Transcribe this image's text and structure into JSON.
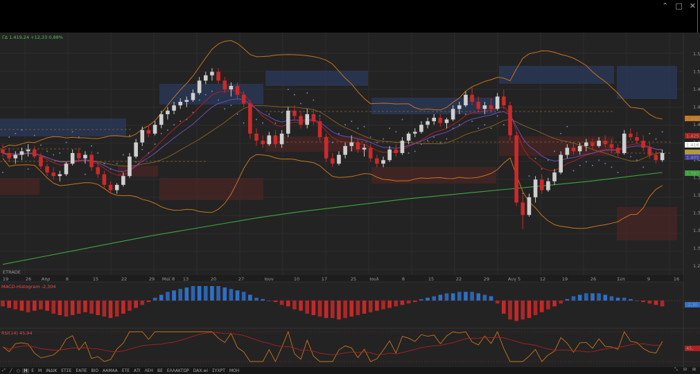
{
  "window": {
    "controls": [
      "⌃",
      "□",
      "✕"
    ]
  },
  "header": {
    "price_label": "ΓΔ 1.419,24 +12,33 0,88%"
  },
  "watermark": "ETRADE",
  "price_axis": {
    "ticks": [
      "1.52",
      "1.50",
      "1.48",
      "1.46",
      "1.44",
      "1.42",
      "1.40",
      "1.38",
      "1.36",
      "1.34",
      "1.32",
      "1.30",
      "1.28"
    ]
  },
  "price_tags": [
    {
      "text": "1.446",
      "color": "#c8751b"
    },
    {
      "text": "1.425",
      "color": "#b02020"
    },
    {
      "text": "1.416",
      "color": "#ffffff"
    },
    {
      "text": "1.410",
      "color": "#b59b2b"
    },
    {
      "text": "1.405",
      "color": "#4040a0"
    },
    {
      "text": "1.387",
      "color": "#3aa03a"
    }
  ],
  "date_axis": {
    "labels": [
      "19",
      "26",
      "Απρ",
      "8",
      "15",
      "22",
      "29",
      "Μαϊ 8",
      "13",
      "20",
      "27",
      "Ιουν",
      "10",
      "17",
      "25",
      "Ιουλ",
      "8",
      "15",
      "22",
      "29",
      "Αυγ 5",
      "12",
      "19",
      "26",
      "Σεπ",
      "9",
      "16"
    ]
  },
  "macd": {
    "title": "MACD-Histogram -2,304",
    "tag": "-2,30"
  },
  "rsi": {
    "title": "RSI(14) 45,94",
    "tags": [
      "45,"
    ]
  },
  "toolbar": {
    "items": [
      "⤢",
      "╱",
      "○",
      "Η",
      "Ε",
      "Μ",
      "ΙΝΔΙΚ",
      "ΕΤΣΕ",
      "ΕΑΠΕ",
      "ΒΙΟ",
      "ΑΑΜΑΑ",
      "ΕΤΕ",
      "ΑΤΙ",
      "ΛΕΗ",
      "ΒΕ",
      "ΕΛΛΑΚΤΩΡ",
      "DAX.wi",
      "ΣΥΧΡΤ",
      "ΜΟΗ"
    ],
    "active_index": 3,
    "right_icons": [
      "⤡",
      "⊟",
      "⊞"
    ]
  },
  "colors": {
    "background": "#232323",
    "bull_candle": "#cfcfcf",
    "bear_candle": "#cc2a2a",
    "ma_long": "#3ea83e",
    "bollinger": "#c8751b",
    "ma_red": "#b02020",
    "ma_purple": "#6a4fb5",
    "macd_pos": "#2f6fc7",
    "macd_neg": "#c62828",
    "sar": "#6f7fb5"
  },
  "chart_data": {
    "type": "candlestick",
    "candles_ohlc": [
      [
        1.412,
        1.418,
        1.404,
        1.408
      ],
      [
        1.408,
        1.414,
        1.398,
        1.402
      ],
      [
        1.402,
        1.41,
        1.396,
        1.406
      ],
      [
        1.406,
        1.414,
        1.4,
        1.41
      ],
      [
        1.41,
        1.418,
        1.404,
        1.412
      ],
      [
        1.412,
        1.416,
        1.402,
        1.404
      ],
      [
        1.404,
        1.408,
        1.39,
        1.393
      ],
      [
        1.393,
        1.396,
        1.382,
        1.386
      ],
      [
        1.386,
        1.392,
        1.378,
        1.382
      ],
      [
        1.382,
        1.388,
        1.376,
        1.384
      ],
      [
        1.384,
        1.398,
        1.382,
        1.396
      ],
      [
        1.396,
        1.412,
        1.394,
        1.408
      ],
      [
        1.408,
        1.414,
        1.398,
        1.402
      ],
      [
        1.402,
        1.41,
        1.396,
        1.406
      ],
      [
        1.406,
        1.41,
        1.388,
        1.392
      ],
      [
        1.392,
        1.398,
        1.38,
        1.384
      ],
      [
        1.384,
        1.388,
        1.368,
        1.372
      ],
      [
        1.372,
        1.376,
        1.362,
        1.366
      ],
      [
        1.366,
        1.374,
        1.362,
        1.372
      ],
      [
        1.372,
        1.386,
        1.37,
        1.382
      ],
      [
        1.382,
        1.408,
        1.38,
        1.404
      ],
      [
        1.404,
        1.424,
        1.402,
        1.42
      ],
      [
        1.42,
        1.438,
        1.416,
        1.434
      ],
      [
        1.434,
        1.44,
        1.426,
        1.43
      ],
      [
        1.43,
        1.444,
        1.428,
        1.44
      ],
      [
        1.44,
        1.456,
        1.436,
        1.452
      ],
      [
        1.452,
        1.46,
        1.446,
        1.456
      ],
      [
        1.456,
        1.466,
        1.452,
        1.462
      ],
      [
        1.462,
        1.47,
        1.458,
        1.466
      ],
      [
        1.466,
        1.472,
        1.46,
        1.468
      ],
      [
        1.468,
        1.48,
        1.466,
        1.476
      ],
      [
        1.476,
        1.494,
        1.474,
        1.49
      ],
      [
        1.49,
        1.5,
        1.486,
        1.496
      ],
      [
        1.496,
        1.504,
        1.49,
        1.5
      ],
      [
        1.5,
        1.504,
        1.486,
        1.49
      ],
      [
        1.49,
        1.494,
        1.476,
        1.48
      ],
      [
        1.48,
        1.488,
        1.472,
        1.484
      ],
      [
        1.484,
        1.488,
        1.468,
        1.474
      ],
      [
        1.474,
        1.478,
        1.46,
        1.464
      ],
      [
        1.464,
        1.468,
        1.424,
        1.43
      ],
      [
        1.43,
        1.436,
        1.416,
        1.422
      ],
      [
        1.422,
        1.428,
        1.414,
        1.418
      ],
      [
        1.418,
        1.432,
        1.416,
        1.428
      ],
      [
        1.428,
        1.434,
        1.414,
        1.418
      ],
      [
        1.418,
        1.434,
        1.414,
        1.43
      ],
      [
        1.43,
        1.46,
        1.426,
        1.456
      ],
      [
        1.456,
        1.462,
        1.446,
        1.45
      ],
      [
        1.45,
        1.456,
        1.436,
        1.44
      ],
      [
        1.44,
        1.458,
        1.436,
        1.452
      ],
      [
        1.452,
        1.458,
        1.44,
        1.444
      ],
      [
        1.444,
        1.448,
        1.422,
        1.426
      ],
      [
        1.426,
        1.43,
        1.398,
        1.402
      ],
      [
        1.402,
        1.408,
        1.392,
        1.396
      ],
      [
        1.396,
        1.41,
        1.394,
        1.406
      ],
      [
        1.406,
        1.42,
        1.402,
        1.416
      ],
      [
        1.416,
        1.428,
        1.41,
        1.42
      ],
      [
        1.42,
        1.424,
        1.408,
        1.412
      ],
      [
        1.412,
        1.418,
        1.404,
        1.414
      ],
      [
        1.414,
        1.418,
        1.398,
        1.402
      ],
      [
        1.402,
        1.406,
        1.392,
        1.396
      ],
      [
        1.396,
        1.404,
        1.392,
        1.4
      ],
      [
        1.4,
        1.416,
        1.398,
        1.412
      ],
      [
        1.412,
        1.418,
        1.404,
        1.408
      ],
      [
        1.408,
        1.426,
        1.406,
        1.422
      ],
      [
        1.422,
        1.432,
        1.418,
        1.43
      ],
      [
        1.43,
        1.436,
        1.426,
        1.432
      ],
      [
        1.432,
        1.444,
        1.43,
        1.44
      ],
      [
        1.44,
        1.448,
        1.436,
        1.444
      ],
      [
        1.444,
        1.452,
        1.44,
        1.448
      ],
      [
        1.448,
        1.452,
        1.438,
        1.442
      ],
      [
        1.442,
        1.448,
        1.436,
        1.446
      ],
      [
        1.446,
        1.462,
        1.444,
        1.458
      ],
      [
        1.458,
        1.466,
        1.452,
        1.462
      ],
      [
        1.462,
        1.478,
        1.46,
        1.474
      ],
      [
        1.474,
        1.482,
        1.462,
        1.466
      ],
      [
        1.466,
        1.472,
        1.454,
        1.458
      ],
      [
        1.458,
        1.466,
        1.452,
        1.462
      ],
      [
        1.462,
        1.47,
        1.454,
        1.458
      ],
      [
        1.458,
        1.476,
        1.456,
        1.472
      ],
      [
        1.472,
        1.48,
        1.458,
        1.462
      ],
      [
        1.462,
        1.466,
        1.422,
        1.428
      ],
      [
        1.428,
        1.432,
        1.348,
        1.352
      ],
      [
        1.352,
        1.36,
        1.322,
        1.338
      ],
      [
        1.338,
        1.362,
        1.336,
        1.358
      ],
      [
        1.358,
        1.382,
        1.352,
        1.378
      ],
      [
        1.378,
        1.384,
        1.362,
        1.366
      ],
      [
        1.366,
        1.38,
        1.364,
        1.376
      ],
      [
        1.376,
        1.39,
        1.372,
        1.386
      ],
      [
        1.386,
        1.41,
        1.384,
        1.406
      ],
      [
        1.406,
        1.418,
        1.402,
        1.414
      ],
      [
        1.414,
        1.42,
        1.406,
        1.41
      ],
      [
        1.41,
        1.42,
        1.406,
        1.416
      ],
      [
        1.416,
        1.424,
        1.41,
        1.42
      ],
      [
        1.42,
        1.424,
        1.412,
        1.416
      ],
      [
        1.416,
        1.426,
        1.414,
        1.422
      ],
      [
        1.422,
        1.428,
        1.414,
        1.418
      ],
      [
        1.418,
        1.424,
        1.408,
        1.414
      ],
      [
        1.414,
        1.418,
        1.404,
        1.408
      ],
      [
        1.408,
        1.434,
        1.406,
        1.43
      ],
      [
        1.43,
        1.436,
        1.422,
        1.426
      ],
      [
        1.426,
        1.432,
        1.418,
        1.422
      ],
      [
        1.422,
        1.428,
        1.41,
        1.414
      ],
      [
        1.414,
        1.42,
        1.402,
        1.406
      ],
      [
        1.406,
        1.41,
        1.396,
        1.4
      ],
      [
        1.4,
        1.412,
        1.398,
        1.408
      ]
    ],
    "ma_long": [
      1.282,
      1.29,
      1.298,
      1.306,
      1.314,
      1.321,
      1.328,
      1.335,
      1.341,
      1.346,
      1.351,
      1.356,
      1.36,
      1.364,
      1.368,
      1.372,
      1.376,
      1.381,
      1.386
    ],
    "y_range": [
      1.27,
      1.535
    ]
  }
}
